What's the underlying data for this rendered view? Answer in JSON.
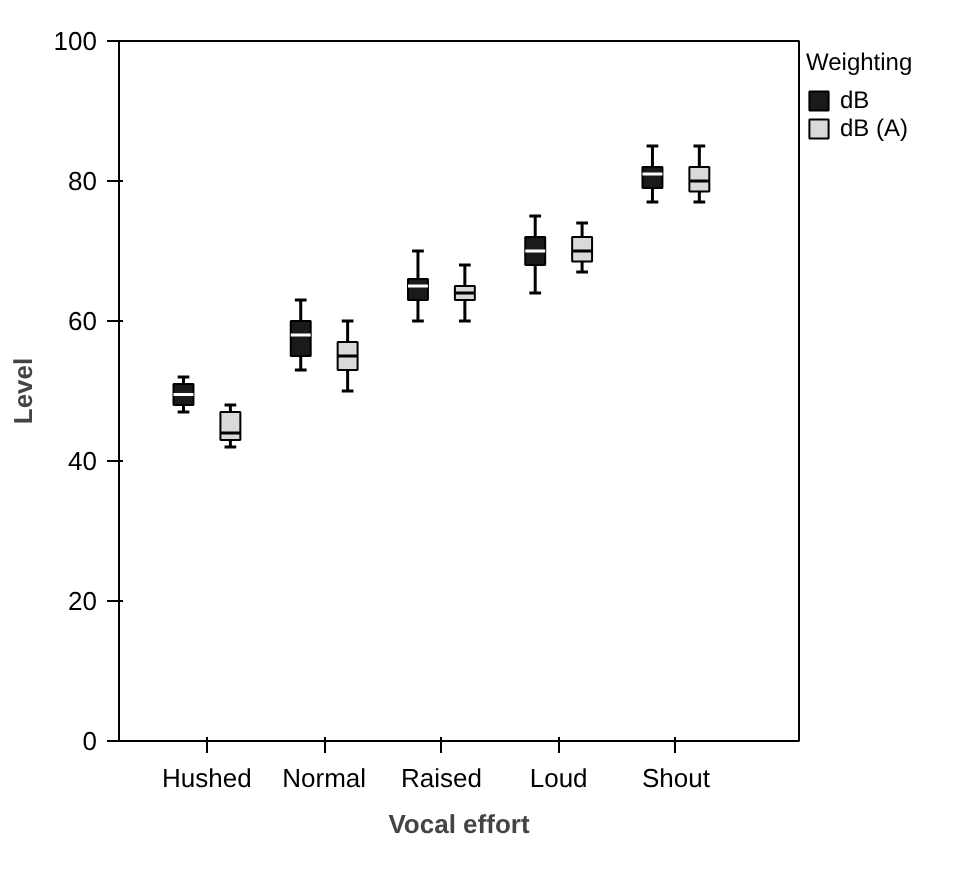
{
  "chart_data": {
    "type": "box",
    "xlabel": "Vocal effort",
    "ylabel": "Level",
    "legend_title": "Weighting",
    "legend": "right",
    "grid": false,
    "categories": [
      "Hushed",
      "Normal",
      "Raised",
      "Loud",
      "Shout"
    ],
    "ylim": [
      0,
      100
    ],
    "yticks": [
      0,
      20,
      40,
      60,
      80,
      100
    ],
    "series": [
      {
        "name": "dB",
        "color": "#1a1a1a",
        "boxes": [
          {
            "low": 47,
            "q1": 48,
            "median": 49.5,
            "q3": 51,
            "high": 52
          },
          {
            "low": 53,
            "q1": 55,
            "median": 58,
            "q3": 60,
            "high": 63
          },
          {
            "low": 60,
            "q1": 63,
            "median": 65,
            "q3": 66,
            "high": 70
          },
          {
            "low": 64,
            "q1": 68,
            "median": 70,
            "q3": 72,
            "high": 75
          },
          {
            "low": 77,
            "q1": 79,
            "median": 81,
            "q3": 82,
            "high": 85
          }
        ]
      },
      {
        "name": "dB (A)",
        "color": "#d9d9d9",
        "boxes": [
          {
            "low": 42,
            "q1": 43,
            "median": 44,
            "q3": 47,
            "high": 48
          },
          {
            "low": 50,
            "q1": 53,
            "median": 55,
            "q3": 57,
            "high": 60
          },
          {
            "low": 60,
            "q1": 63,
            "median": 64,
            "q3": 65,
            "high": 68
          },
          {
            "low": 67,
            "q1": 68.5,
            "median": 70,
            "q3": 72,
            "high": 74
          },
          {
            "low": 77,
            "q1": 78.5,
            "median": 80,
            "q3": 82,
            "high": 85
          }
        ]
      }
    ]
  }
}
